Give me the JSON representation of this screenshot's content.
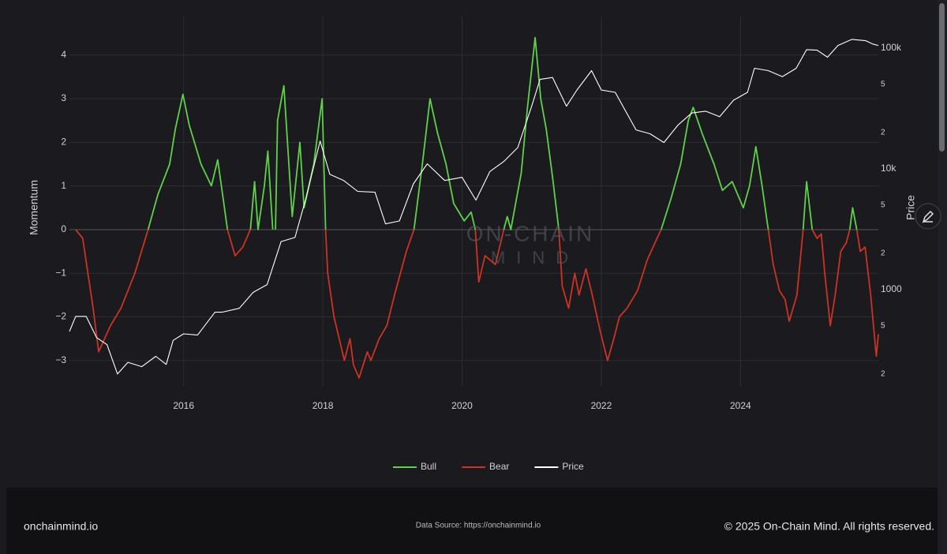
{
  "chart_data": {
    "type": "line",
    "y_label": "Momentum",
    "y2_label": "Price",
    "watermark": [
      "ON-CHAIN",
      "MIND"
    ],
    "xlim": [
      2014.36,
      2025.98
    ],
    "xticks": [
      2016,
      2018,
      2020,
      2022,
      2024
    ],
    "ylim": [
      -3.6,
      4.9
    ],
    "yticks": [
      {
        "value": -3,
        "label": "−3"
      },
      {
        "value": -2,
        "label": "−2"
      },
      {
        "value": -1,
        "label": "−1"
      },
      0,
      1,
      2,
      3,
      4
    ],
    "y2lim": [
      157,
      185000
    ],
    "y2log": true,
    "y2ticks": [
      {
        "value": 200,
        "label": "2"
      },
      {
        "value": 500,
        "label": "5"
      },
      1000,
      {
        "value": 2000,
        "label": "2"
      },
      {
        "value": 5000,
        "label": "5"
      },
      {
        "value": 10000,
        "label": "10k"
      },
      {
        "value": 20000,
        "label": "2"
      },
      {
        "value": 50000,
        "label": "5"
      },
      {
        "value": 100000,
        "label": "100k"
      }
    ],
    "grid": true,
    "legend": "bottom",
    "series": [
      {
        "name": "Bull",
        "color": "#5fd14a",
        "x": [
          2015.49,
          2015.63,
          2015.8,
          2015.88,
          2015.99,
          2016.08,
          2016.25,
          2016.4,
          2016.49,
          2016.56,
          2016.63,
          null,
          2016.96,
          2017.02,
          2017.07,
          2017.16,
          2017.21,
          2017.28,
          null,
          2017.32,
          2017.35,
          2017.44,
          2017.56,
          2017.67,
          2017.73,
          2017.87,
          2017.99,
          2018.04,
          null,
          2019.31,
          2019.43,
          2019.54,
          2019.65,
          2019.77,
          2019.88,
          2020.03,
          2020.13,
          2020.19,
          null,
          2020.6,
          2020.65,
          2020.7,
          2020.85,
          2020.94,
          2021.05,
          2021.13,
          2021.21,
          2021.3,
          2021.39,
          null,
          2022.86,
          2023.0,
          2023.14,
          2023.25,
          2023.32,
          2023.45,
          2023.62,
          2023.74,
          2023.88,
          2024.04,
          2024.13,
          2024.22,
          2024.31,
          2024.38,
          2024.4,
          null,
          2024.9,
          2024.95,
          2025.03,
          null,
          2025.57,
          2025.61,
          2025.67
        ],
        "values": [
          0,
          0.8,
          1.5,
          2.3,
          3.1,
          2.4,
          1.5,
          1.0,
          1.6,
          0.8,
          0,
          null,
          0,
          1.1,
          0,
          1.0,
          1.8,
          0,
          null,
          0,
          2.5,
          3.3,
          0.3,
          2.0,
          0.5,
          1.5,
          3.0,
          0,
          null,
          0,
          1.5,
          3.0,
          2.2,
          1.5,
          0.6,
          0.2,
          0.4,
          0,
          null,
          0,
          0.3,
          0,
          1.3,
          2.8,
          4.4,
          3.0,
          2.3,
          1.2,
          0,
          null,
          0,
          0.7,
          1.5,
          2.5,
          2.8,
          2.2,
          1.5,
          0.9,
          1.1,
          0.5,
          1.0,
          1.9,
          1.0,
          0.2,
          0,
          null,
          0,
          1.1,
          0,
          null,
          0,
          0.5,
          0
        ]
      },
      {
        "name": "Bear",
        "color": "#cc3322",
        "x": [
          2014.45,
          2014.55,
          2014.7,
          2014.78,
          2014.95,
          2015.1,
          2015.3,
          2015.49,
          null,
          2016.63,
          2016.74,
          2016.85,
          2016.96,
          null,
          2018.04,
          2018.07,
          2018.16,
          2018.22,
          2018.31,
          2018.39,
          2018.44,
          2018.52,
          2018.64,
          2018.69,
          2018.81,
          2018.92,
          2019.03,
          2019.2,
          2019.31,
          null,
          2020.19,
          2020.24,
          2020.33,
          2020.48,
          2020.6,
          null,
          2021.39,
          2021.44,
          2021.53,
          2021.62,
          2021.68,
          2021.78,
          2021.87,
          2021.98,
          2022.09,
          2022.18,
          2022.26,
          2022.37,
          2022.52,
          2022.66,
          2022.8,
          2022.86,
          null,
          2024.4,
          2024.47,
          2024.56,
          2024.64,
          2024.7,
          2024.81,
          2024.9,
          null,
          2025.03,
          2025.1,
          2025.16,
          2025.21,
          2025.29,
          2025.36,
          2025.44,
          2025.52,
          2025.57,
          null,
          2025.67,
          2025.72,
          2025.79,
          2025.87,
          2025.95,
          2025.98
        ],
        "values": [
          0,
          -0.2,
          -1.8,
          -2.8,
          -2.2,
          -1.8,
          -1.0,
          0,
          null,
          0,
          -0.6,
          -0.4,
          0,
          null,
          0,
          -1.0,
          -2.0,
          -2.4,
          -3.0,
          -2.5,
          -3.1,
          -3.4,
          -2.8,
          -3.0,
          -2.5,
          -2.2,
          -1.5,
          -0.5,
          0,
          null,
          0,
          -1.2,
          -0.6,
          -0.8,
          0,
          null,
          0,
          -1.3,
          -1.8,
          -1.0,
          -1.5,
          -0.9,
          -1.5,
          -2.3,
          -3.0,
          -2.5,
          -2.0,
          -1.8,
          -1.4,
          -0.7,
          -0.2,
          0,
          null,
          0,
          -0.8,
          -1.4,
          -1.6,
          -2.1,
          -1.5,
          0,
          null,
          0,
          -0.2,
          -0.1,
          -1.0,
          -2.2,
          -1.5,
          -0.5,
          -0.3,
          0,
          null,
          0,
          -0.5,
          -0.4,
          -1.5,
          -2.9,
          -2.4
        ]
      },
      {
        "name": "Price",
        "color": "#ffffff",
        "axis": "y2",
        "x": [
          2014.36,
          2014.45,
          2014.6,
          2014.75,
          2014.9,
          2015.05,
          2015.2,
          2015.4,
          2015.6,
          2015.75,
          2015.85,
          2016.0,
          2016.2,
          2016.45,
          2016.55,
          2016.8,
          2017.0,
          2017.2,
          2017.4,
          2017.6,
          2017.75,
          2017.96,
          2018.1,
          2018.3,
          2018.5,
          2018.75,
          2018.9,
          2019.1,
          2019.3,
          2019.5,
          2019.75,
          2020.0,
          2020.2,
          2020.4,
          2020.6,
          2020.8,
          2021.0,
          2021.12,
          2021.3,
          2021.5,
          2021.65,
          2021.86,
          2022.0,
          2022.2,
          2022.35,
          2022.5,
          2022.7,
          2022.9,
          2023.1,
          2023.3,
          2023.5,
          2023.7,
          2023.9,
          2024.1,
          2024.2,
          2024.4,
          2024.6,
          2024.8,
          2024.95,
          2025.1,
          2025.25,
          2025.4,
          2025.6,
          2025.8,
          2025.9,
          2025.98
        ],
        "values": [
          450,
          600,
          600,
          400,
          350,
          200,
          250,
          230,
          280,
          240,
          380,
          430,
          420,
          650,
          650,
          700,
          950,
          1100,
          2500,
          2700,
          5500,
          17000,
          9000,
          8000,
          6500,
          6400,
          3500,
          3700,
          7500,
          11000,
          8000,
          8500,
          5500,
          9500,
          11500,
          15000,
          33000,
          55000,
          57000,
          33000,
          45000,
          65000,
          45000,
          43000,
          30000,
          21000,
          19500,
          16500,
          23000,
          29000,
          30000,
          27000,
          37000,
          43000,
          68000,
          65000,
          58000,
          68000,
          97000,
          96000,
          84000,
          105000,
          118000,
          115000,
          108000,
          105000
        ]
      }
    ]
  },
  "footer": {
    "site": "onchainmind.io",
    "source": "Data Source: https://onchainmind.io",
    "copyright": "© 2025 On-Chain Mind. All rights reserved."
  }
}
